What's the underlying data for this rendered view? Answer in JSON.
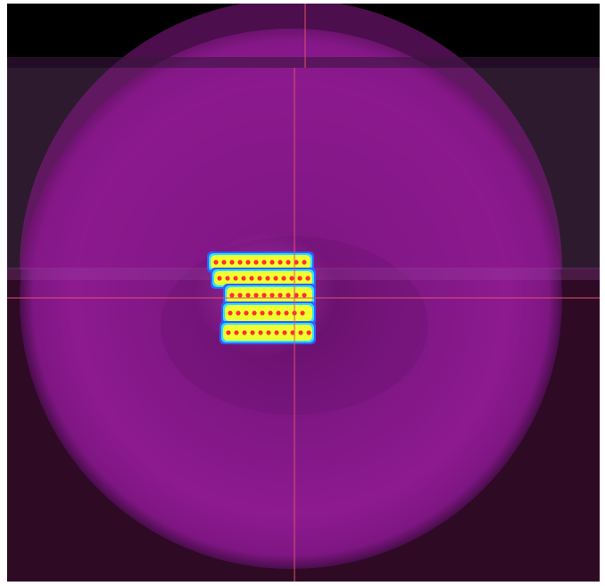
{
  "viewer": {
    "background_color": "#2e0a22",
    "disc_color": "#8e1a90",
    "disc_edge_color": "#6b1370",
    "crosshair_color": "#e0506a",
    "heat_colors": [
      "#3060ff",
      "#30e0ff",
      "#f0ff30",
      "#ff3030"
    ],
    "icons": [
      "crosshair-icon"
    ]
  }
}
